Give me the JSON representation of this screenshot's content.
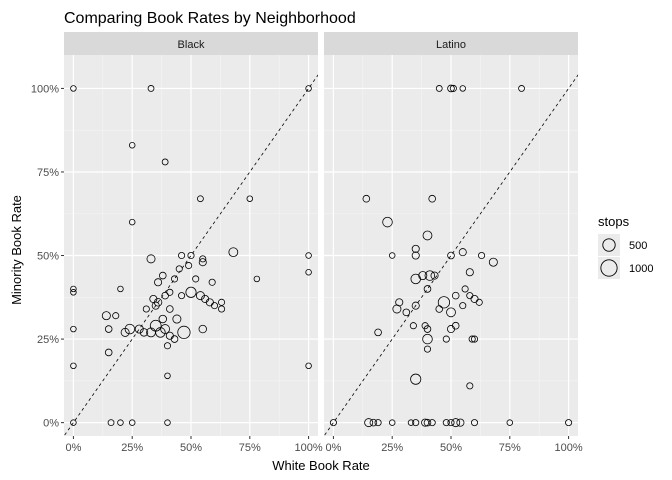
{
  "chart_data": {
    "type": "scatter",
    "title": "Comparing Book Rates by Neighborhood",
    "xlabel": "White Book Rate",
    "ylabel": "Minority Book Rate",
    "xlim": [
      -0.04,
      1.04
    ],
    "ylim": [
      -0.04,
      1.1
    ],
    "x_ticks": [
      0,
      0.25,
      0.5,
      0.75,
      1.0
    ],
    "x_tick_labels": [
      "0%",
      "25%",
      "50%",
      "75%",
      "100%"
    ],
    "y_ticks": [
      0,
      0.25,
      0.5,
      0.75,
      1.0
    ],
    "y_tick_labels": [
      "0%",
      "25%",
      "50%",
      "75%",
      "100%"
    ],
    "reference_line": "y = x (dashed)",
    "grid": true,
    "legend": {
      "title": "stops",
      "position": "right",
      "entries": [
        {
          "label": "500",
          "value": 500
        },
        {
          "label": "1000",
          "value": 1000
        }
      ]
    },
    "panels": [
      {
        "name": "Black",
        "points": [
          [
            0.0,
            1.0,
            40
          ],
          [
            0.33,
            1.0,
            50
          ],
          [
            1.0,
            1.0,
            40
          ],
          [
            0.25,
            0.83,
            40
          ],
          [
            0.39,
            0.78,
            50
          ],
          [
            0.54,
            0.67,
            50
          ],
          [
            0.75,
            0.67,
            40
          ],
          [
            0.25,
            0.6,
            40
          ],
          [
            0.33,
            0.49,
            150
          ],
          [
            0.46,
            0.5,
            60
          ],
          [
            0.5,
            0.5,
            60
          ],
          [
            0.68,
            0.51,
            200
          ],
          [
            1.0,
            0.5,
            40
          ],
          [
            1.0,
            0.45,
            40
          ],
          [
            0.49,
            0.47,
            60
          ],
          [
            0.55,
            0.48,
            100
          ],
          [
            0.55,
            0.49,
            60
          ],
          [
            0.78,
            0.43,
            40
          ],
          [
            0.0,
            0.4,
            40
          ],
          [
            0.0,
            0.39,
            40
          ],
          [
            0.2,
            0.4,
            40
          ],
          [
            0.36,
            0.42,
            100
          ],
          [
            0.38,
            0.44,
            80
          ],
          [
            0.43,
            0.43,
            60
          ],
          [
            0.45,
            0.46,
            60
          ],
          [
            0.52,
            0.43,
            60
          ],
          [
            0.59,
            0.42,
            60
          ],
          [
            0.34,
            0.37,
            100
          ],
          [
            0.36,
            0.36,
            120
          ],
          [
            0.39,
            0.38,
            80
          ],
          [
            0.41,
            0.39,
            60
          ],
          [
            0.46,
            0.38,
            60
          ],
          [
            0.5,
            0.39,
            300
          ],
          [
            0.54,
            0.38,
            150
          ],
          [
            0.56,
            0.37,
            100
          ],
          [
            0.58,
            0.36,
            100
          ],
          [
            0.6,
            0.35,
            60
          ],
          [
            0.63,
            0.34,
            60
          ],
          [
            0.63,
            0.36,
            60
          ],
          [
            0.31,
            0.34,
            60
          ],
          [
            0.35,
            0.35,
            100
          ],
          [
            0.41,
            0.34,
            80
          ],
          [
            0.44,
            0.31,
            150
          ],
          [
            0.14,
            0.32,
            150
          ],
          [
            0.18,
            0.32,
            60
          ],
          [
            0.15,
            0.28,
            80
          ],
          [
            0.22,
            0.27,
            150
          ],
          [
            0.24,
            0.28,
            250
          ],
          [
            0.28,
            0.28,
            150
          ],
          [
            0.3,
            0.27,
            120
          ],
          [
            0.33,
            0.27,
            200
          ],
          [
            0.35,
            0.29,
            350
          ],
          [
            0.37,
            0.27,
            250
          ],
          [
            0.39,
            0.28,
            200
          ],
          [
            0.41,
            0.26,
            100
          ],
          [
            0.43,
            0.25,
            80
          ],
          [
            0.47,
            0.27,
            500
          ],
          [
            0.55,
            0.28,
            120
          ],
          [
            0.38,
            0.31,
            120
          ],
          [
            0.4,
            0.23,
            60
          ],
          [
            0.0,
            0.28,
            40
          ],
          [
            0.15,
            0.21,
            80
          ],
          [
            0.0,
            0.17,
            40
          ],
          [
            1.0,
            0.17,
            40
          ],
          [
            0.4,
            0.14,
            40
          ],
          [
            0.0,
            0.0,
            40
          ],
          [
            0.16,
            0.0,
            50
          ],
          [
            0.2,
            0.0,
            40
          ],
          [
            0.25,
            0.0,
            40
          ],
          [
            0.4,
            0.0,
            40
          ]
        ]
      },
      {
        "name": "Latino",
        "points": [
          [
            0.45,
            1.0,
            50
          ],
          [
            0.5,
            1.0,
            80
          ],
          [
            0.51,
            1.0,
            60
          ],
          [
            0.55,
            1.0,
            40
          ],
          [
            0.8,
            1.0,
            50
          ],
          [
            0.14,
            0.67,
            80
          ],
          [
            0.42,
            0.67,
            80
          ],
          [
            0.23,
            0.6,
            250
          ],
          [
            0.4,
            0.56,
            200
          ],
          [
            0.35,
            0.52,
            100
          ],
          [
            0.35,
            0.5,
            100
          ],
          [
            0.25,
            0.5,
            40
          ],
          [
            0.5,
            0.5,
            80
          ],
          [
            0.55,
            0.51,
            100
          ],
          [
            0.63,
            0.5,
            60
          ],
          [
            0.68,
            0.48,
            150
          ],
          [
            0.35,
            0.43,
            250
          ],
          [
            0.38,
            0.44,
            150
          ],
          [
            0.41,
            0.44,
            250
          ],
          [
            0.43,
            0.44,
            100
          ],
          [
            0.4,
            0.4,
            80
          ],
          [
            0.58,
            0.45,
            100
          ],
          [
            0.27,
            0.34,
            150
          ],
          [
            0.28,
            0.36,
            100
          ],
          [
            0.31,
            0.33,
            80
          ],
          [
            0.35,
            0.35,
            100
          ],
          [
            0.45,
            0.34,
            80
          ],
          [
            0.47,
            0.36,
            400
          ],
          [
            0.5,
            0.33,
            200
          ],
          [
            0.52,
            0.38,
            80
          ],
          [
            0.6,
            0.37,
            100
          ],
          [
            0.55,
            0.35,
            60
          ],
          [
            0.62,
            0.36,
            60
          ],
          [
            0.56,
            0.4,
            60
          ],
          [
            0.58,
            0.38,
            60
          ],
          [
            0.34,
            0.29,
            60
          ],
          [
            0.39,
            0.29,
            60
          ],
          [
            0.4,
            0.28,
            80
          ],
          [
            0.5,
            0.28,
            100
          ],
          [
            0.52,
            0.29,
            80
          ],
          [
            0.59,
            0.25,
            60
          ],
          [
            0.6,
            0.25,
            60
          ],
          [
            0.19,
            0.27,
            80
          ],
          [
            0.4,
            0.25,
            250
          ],
          [
            0.4,
            0.22,
            60
          ],
          [
            0.48,
            0.25,
            60
          ],
          [
            0.35,
            0.13,
            300
          ],
          [
            0.58,
            0.11,
            60
          ],
          [
            0.0,
            0.0,
            60
          ],
          [
            0.15,
            0.0,
            150
          ],
          [
            0.17,
            0.0,
            80
          ],
          [
            0.19,
            0.0,
            60
          ],
          [
            0.25,
            0.0,
            40
          ],
          [
            0.33,
            0.0,
            40
          ],
          [
            0.35,
            0.0,
            60
          ],
          [
            0.39,
            0.0,
            100
          ],
          [
            0.4,
            0.0,
            80
          ],
          [
            0.42,
            0.0,
            60
          ],
          [
            0.48,
            0.0,
            60
          ],
          [
            0.5,
            0.0,
            60
          ],
          [
            0.52,
            0.0,
            150
          ],
          [
            0.54,
            0.0,
            100
          ],
          [
            0.6,
            0.0,
            60
          ],
          [
            0.75,
            0.0,
            40
          ],
          [
            1.0,
            0.0,
            60
          ]
        ]
      }
    ]
  }
}
